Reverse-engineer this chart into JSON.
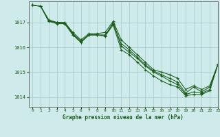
{
  "title": "Graphe pression niveau de la mer (hPa)",
  "background_color": "#ceeaea",
  "grid_color": "#aacece",
  "line_color": "#1a5c1a",
  "xlim": [
    -0.5,
    23
  ],
  "ylim": [
    1013.6,
    1017.85
  ],
  "yticks": [
    1014,
    1015,
    1016,
    1017
  ],
  "xticks": [
    0,
    1,
    2,
    3,
    4,
    5,
    6,
    7,
    8,
    9,
    10,
    11,
    12,
    13,
    14,
    15,
    16,
    17,
    18,
    19,
    20,
    21,
    22,
    23
  ],
  "series": [
    [
      1017.7,
      1017.65,
      1017.1,
      1017.0,
      1017.0,
      1016.55,
      1016.25,
      1016.5,
      1016.5,
      1016.5,
      1016.95,
      1016.15,
      1015.9,
      1015.6,
      1015.3,
      1015.05,
      1014.9,
      1014.75,
      1014.6,
      1014.15,
      1014.4,
      1014.2,
      1014.4,
      1015.3
    ],
    [
      1017.7,
      1017.65,
      1017.05,
      1017.0,
      1016.95,
      1016.5,
      1016.2,
      1016.5,
      1016.5,
      1016.45,
      1016.9,
      1015.9,
      1015.7,
      1015.4,
      1015.1,
      1014.85,
      1014.65,
      1014.5,
      1014.4,
      1014.05,
      1014.1,
      1014.1,
      1014.25,
      1015.3
    ],
    [
      1017.7,
      1017.65,
      1017.05,
      1016.95,
      1016.95,
      1016.5,
      1016.2,
      1016.5,
      1016.5,
      1016.45,
      1017.0,
      1016.05,
      1015.8,
      1015.55,
      1015.25,
      1015.0,
      1014.85,
      1014.65,
      1014.5,
      1014.1,
      1014.2,
      1014.15,
      1014.3,
      1015.3
    ],
    [
      1017.7,
      1017.65,
      1017.1,
      1017.0,
      1017.0,
      1016.6,
      1016.3,
      1016.55,
      1016.55,
      1016.6,
      1017.05,
      1016.3,
      1016.0,
      1015.7,
      1015.4,
      1015.1,
      1015.0,
      1014.9,
      1014.75,
      1014.3,
      1014.45,
      1014.3,
      1014.45,
      1015.3
    ]
  ]
}
